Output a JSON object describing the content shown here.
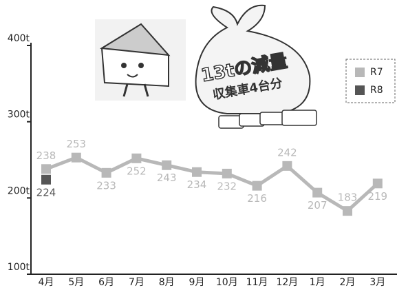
{
  "chart_data": {
    "type": "line",
    "categories": [
      "4月",
      "5月",
      "6月",
      "7月",
      "8月",
      "9月",
      "10月",
      "11月",
      "12月",
      "1月",
      "2月",
      "3月"
    ],
    "series": [
      {
        "name": "R7",
        "color": "#b8b8b8",
        "values": [
          238,
          253,
          233,
          252,
          243,
          234,
          232,
          216,
          242,
          207,
          183,
          219
        ]
      },
      {
        "name": "R8",
        "color": "#555555",
        "values": [
          224,
          null,
          null,
          null,
          null,
          null,
          null,
          null,
          null,
          null,
          null,
          null
        ]
      }
    ],
    "ylim": [
      100,
      400
    ],
    "yticks": [
      {
        "value": 100,
        "label": "100t"
      },
      {
        "value": 200,
        "label": "200t"
      },
      {
        "value": 300,
        "label": "300t"
      },
      {
        "value": 400,
        "label": "400t"
      }
    ],
    "legend": "top-right",
    "annotations": [
      "13tの減量",
      "収集車4台分"
    ]
  }
}
